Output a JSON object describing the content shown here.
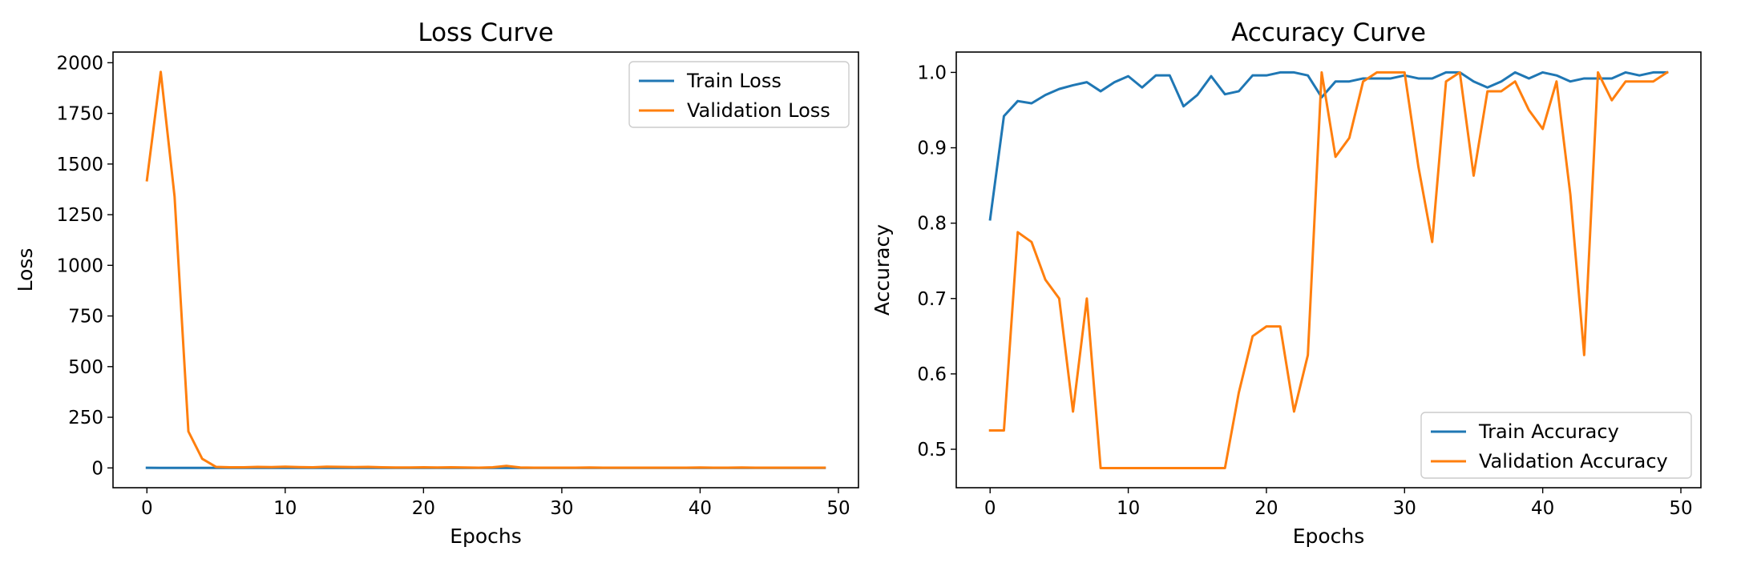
{
  "colors": {
    "series_1": "#1f77b4",
    "series_2": "#ff7f0e"
  },
  "chart_data": [
    {
      "type": "line",
      "title": "Loss Curve",
      "xlabel": "Epochs",
      "ylabel": "Loss",
      "xlim": [
        -2.45,
        51.45
      ],
      "ylim": [
        -97.7,
        2052.7
      ],
      "xticks": [
        0,
        10,
        20,
        30,
        40,
        50
      ],
      "yticks": [
        0,
        250,
        500,
        750,
        1000,
        1250,
        1500,
        1750,
        2000
      ],
      "grid": false,
      "legend_position": "upper right",
      "x": [
        0,
        1,
        2,
        3,
        4,
        5,
        6,
        7,
        8,
        9,
        10,
        11,
        12,
        13,
        14,
        15,
        16,
        17,
        18,
        19,
        20,
        21,
        22,
        23,
        24,
        25,
        26,
        27,
        28,
        29,
        30,
        31,
        32,
        33,
        34,
        35,
        36,
        37,
        38,
        39,
        40,
        41,
        42,
        43,
        44,
        45,
        46,
        47,
        48,
        49
      ],
      "series": [
        {
          "name": "Train Loss",
          "color": "#1f77b4",
          "values": [
            0.5,
            0.2,
            0.1,
            0.1,
            0.1,
            0.1,
            0.1,
            0.1,
            0.1,
            0.1,
            0.1,
            0.1,
            0.1,
            0.1,
            0.1,
            0.1,
            0.1,
            0.1,
            0.1,
            0.05,
            0.05,
            0.05,
            0.05,
            0.05,
            0.1,
            0.05,
            0.05,
            0.05,
            0.05,
            0.05,
            0.05,
            0.05,
            0.05,
            0.05,
            0.05,
            0.05,
            0.05,
            0.05,
            0.05,
            0.05,
            0.05,
            0.05,
            0.05,
            0.05,
            0.05,
            0.05,
            0.05,
            0.05,
            0.05,
            0.05
          ]
        },
        {
          "name": "Validation Loss",
          "color": "#ff7f0e",
          "values": [
            1420,
            1955,
            1340,
            180,
            45,
            5,
            3,
            3,
            5,
            4,
            6,
            4,
            3,
            6,
            5,
            4,
            5,
            3,
            2,
            2,
            3,
            2,
            3,
            2,
            1,
            3,
            10,
            2,
            1,
            1,
            1,
            1,
            2,
            1,
            1,
            1,
            1,
            1,
            1,
            1,
            2,
            1,
            1,
            2,
            1,
            1,
            1,
            1,
            1,
            1
          ]
        }
      ]
    },
    {
      "type": "line",
      "title": "Accuracy Curve",
      "xlabel": "Epochs",
      "ylabel": "Accuracy",
      "xlim": [
        -2.45,
        51.45
      ],
      "ylim": [
        0.449,
        1.027
      ],
      "xticks": [
        0,
        10,
        20,
        30,
        40,
        50
      ],
      "yticks": [
        0.5,
        0.6,
        0.7,
        0.8,
        0.9,
        1.0
      ],
      "ytick_labels": [
        "0.5",
        "0.6",
        "0.7",
        "0.8",
        "0.9",
        "1.0"
      ],
      "grid": false,
      "legend_position": "lower right",
      "x": [
        0,
        1,
        2,
        3,
        4,
        5,
        6,
        7,
        8,
        9,
        10,
        11,
        12,
        13,
        14,
        15,
        16,
        17,
        18,
        19,
        20,
        21,
        22,
        23,
        24,
        25,
        26,
        27,
        28,
        29,
        30,
        31,
        32,
        33,
        34,
        35,
        36,
        37,
        38,
        39,
        40,
        41,
        42,
        43,
        44,
        45,
        46,
        47,
        48,
        49
      ],
      "series": [
        {
          "name": "Train Accuracy",
          "color": "#1f77b4",
          "values": [
            0.805,
            0.942,
            0.962,
            0.959,
            0.97,
            0.978,
            0.983,
            0.987,
            0.975,
            0.987,
            0.995,
            0.98,
            0.996,
            0.996,
            0.955,
            0.97,
            0.995,
            0.971,
            0.975,
            0.996,
            0.996,
            1.0,
            1.0,
            0.996,
            0.967,
            0.988,
            0.988,
            0.992,
            0.992,
            0.992,
            0.996,
            0.992,
            0.992,
            1.0,
            1.0,
            0.988,
            0.98,
            0.988,
            1.0,
            0.992,
            1.0,
            0.996,
            0.988,
            0.992,
            0.992,
            0.992,
            1.0,
            0.996,
            1.0,
            1.0
          ]
        },
        {
          "name": "Validation Accuracy",
          "color": "#ff7f0e",
          "values": [
            0.525,
            0.525,
            0.788,
            0.775,
            0.725,
            0.7,
            0.55,
            0.7,
            0.475,
            0.475,
            0.475,
            0.475,
            0.475,
            0.475,
            0.475,
            0.475,
            0.475,
            0.475,
            0.575,
            0.65,
            0.663,
            0.663,
            0.55,
            0.625,
            1.0,
            0.888,
            0.913,
            0.988,
            1.0,
            1.0,
            1.0,
            0.875,
            0.775,
            0.988,
            1.0,
            0.863,
            0.975,
            0.975,
            0.988,
            0.95,
            0.925,
            0.988,
            0.838,
            0.625,
            1.0,
            0.963,
            0.988,
            0.988,
            0.988,
            1.0
          ]
        }
      ]
    }
  ]
}
